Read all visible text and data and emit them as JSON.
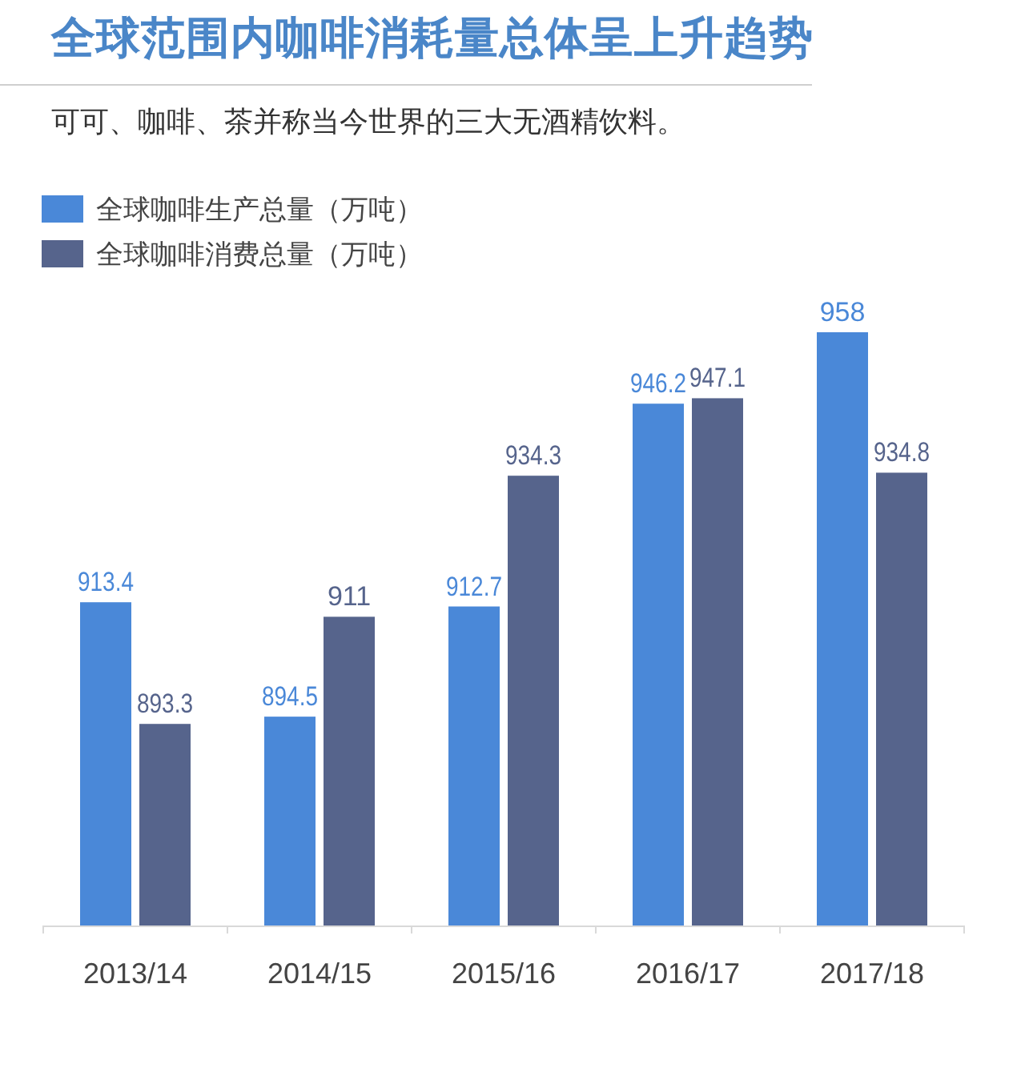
{
  "chart_data": {
    "type": "bar",
    "title": "全球范围内咖啡消耗量总体呈上升趋势",
    "subtitle": "可可、咖啡、茶并称当今世界的三大无酒精饮料。",
    "categories": [
      "2013/14",
      "2014/15",
      "2015/16",
      "2016/17",
      "2017/18"
    ],
    "series": [
      {
        "name": "全球咖啡生产总量（万吨）",
        "color": "#4a88d8",
        "values": [
          913.4,
          894.5,
          912.7,
          946.2,
          958
        ]
      },
      {
        "name": "全球咖啡消费总量（万吨）",
        "color": "#56648c",
        "values": [
          893.3,
          911,
          934.3,
          947.1,
          934.8
        ]
      }
    ],
    "ylim": [
      860,
      958
    ],
    "tick_labels": "x",
    "data_labels": true,
    "legend": "top left"
  }
}
